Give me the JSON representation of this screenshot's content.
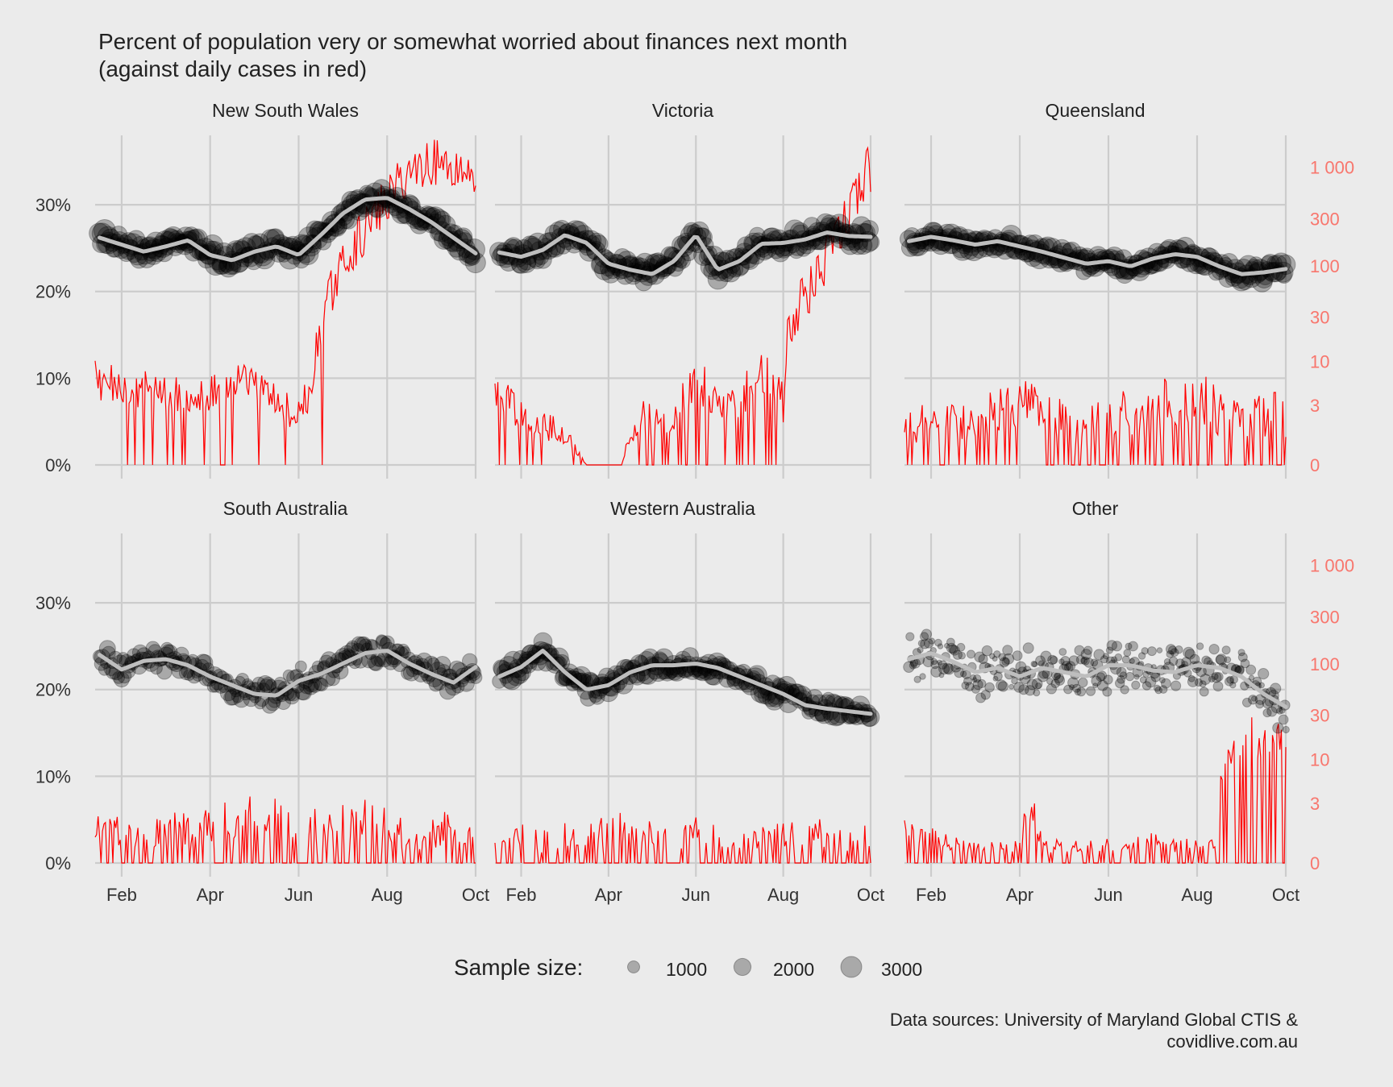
{
  "chart_data": {
    "type": "scatter",
    "title": "Percent of population very or somewhat worried about finances next month",
    "subtitle": "(against daily cases in red)",
    "caption_line1": "Data sources: University of Maryland Global CTIS &",
    "caption_line2": "covidlive.com.au",
    "x_ticks": [
      "Feb",
      "Apr",
      "Jun",
      "Aug",
      "Oct"
    ],
    "x_tick_months": [
      1,
      3,
      5,
      7,
      9
    ],
    "x_domain_months": [
      0.4,
      9.0
    ],
    "y_left_ticks": [
      "0%",
      "10%",
      "20%",
      "30%"
    ],
    "y_left_values": [
      0,
      10,
      20,
      30
    ],
    "y_left_range": [
      0,
      38
    ],
    "y_right_ticks": [
      "0",
      "3",
      "10",
      "30",
      "100",
      "300",
      "1 000"
    ],
    "y_right_values": [
      0,
      3,
      10,
      30,
      100,
      300,
      1000
    ],
    "y_right_scale": "log1p",
    "grid": true,
    "legend": {
      "title": "Sample size:",
      "position": "bottom",
      "entries": [
        "1000",
        "2000",
        "3000"
      ],
      "values": [
        1000,
        2000,
        3000
      ]
    },
    "colors": {
      "points": "#000000",
      "smooth": "#BEBEBE",
      "cases": "#FF0000",
      "right_axis_text": "#F8766D",
      "grid": "#CCCCCC",
      "panel_bg": "#EBEBEB"
    },
    "panels": [
      {
        "name": "New South Wales",
        "pct_key": [
          [
            0.5,
            26.2
          ],
          [
            1.0,
            25.4
          ],
          [
            1.5,
            24.6
          ],
          [
            2.0,
            25.2
          ],
          [
            2.5,
            25.9
          ],
          [
            3.0,
            24.2
          ],
          [
            3.5,
            23.6
          ],
          [
            4.0,
            24.6
          ],
          [
            4.5,
            25.2
          ],
          [
            5.0,
            24.2
          ],
          [
            5.5,
            26.5
          ],
          [
            6.0,
            29.0
          ],
          [
            6.5,
            30.6
          ],
          [
            7.0,
            30.8
          ],
          [
            7.5,
            29.5
          ],
          [
            8.0,
            28.0
          ],
          [
            8.5,
            26.2
          ],
          [
            9.0,
            24.4
          ]
        ],
        "pct_noise": 1.0,
        "size_range": [
          1500,
          3200
        ],
        "cases_key": [
          [
            0.4,
            6
          ],
          [
            2.0,
            4
          ],
          [
            3.0,
            4
          ],
          [
            3.6,
            6
          ],
          [
            4.3,
            4
          ],
          [
            4.9,
            2
          ],
          [
            5.3,
            4
          ],
          [
            5.6,
            30
          ],
          [
            6.0,
            100
          ],
          [
            6.5,
            220
          ],
          [
            7.0,
            450
          ],
          [
            7.5,
            900
          ],
          [
            8.0,
            1150
          ],
          [
            8.5,
            1000
          ],
          [
            9.0,
            850
          ]
        ],
        "cases_noise": 0.55,
        "zero_prob": 0.1
      },
      {
        "name": "Victoria",
        "pct_key": [
          [
            0.5,
            24.5
          ],
          [
            1.0,
            24.0
          ],
          [
            1.5,
            24.8
          ],
          [
            2.0,
            26.5
          ],
          [
            2.5,
            25.6
          ],
          [
            3.0,
            23.2
          ],
          [
            3.5,
            22.5
          ],
          [
            4.0,
            22.0
          ],
          [
            4.5,
            23.5
          ],
          [
            5.0,
            26.5
          ],
          [
            5.5,
            22.5
          ],
          [
            6.0,
            23.5
          ],
          [
            6.5,
            25.5
          ],
          [
            7.0,
            25.6
          ],
          [
            7.5,
            26.0
          ],
          [
            8.0,
            26.8
          ],
          [
            8.5,
            26.4
          ],
          [
            9.0,
            26.3
          ]
        ],
        "pct_noise": 1.1,
        "size_range": [
          1500,
          3000
        ],
        "cases_key": [
          [
            0.4,
            4
          ],
          [
            1.0,
            2
          ],
          [
            2.0,
            1
          ],
          [
            2.5,
            0
          ],
          [
            3.3,
            0
          ],
          [
            3.8,
            2
          ],
          [
            4.5,
            2
          ],
          [
            5.0,
            6
          ],
          [
            5.5,
            3
          ],
          [
            6.0,
            3
          ],
          [
            6.5,
            8
          ],
          [
            7.0,
            3
          ],
          [
            7.2,
            30
          ],
          [
            7.7,
            60
          ],
          [
            8.2,
            160
          ],
          [
            8.6,
            400
          ],
          [
            9.0,
            1000
          ]
        ],
        "cases_noise": 0.6,
        "zero_prob": 0.22
      },
      {
        "name": "Queensland",
        "pct_key": [
          [
            0.5,
            25.8
          ],
          [
            1.0,
            26.3
          ],
          [
            1.5,
            25.9
          ],
          [
            2.0,
            25.4
          ],
          [
            2.5,
            25.8
          ],
          [
            3.0,
            25.2
          ],
          [
            3.5,
            24.6
          ],
          [
            4.0,
            23.9
          ],
          [
            4.5,
            23.2
          ],
          [
            5.0,
            23.5
          ],
          [
            5.5,
            22.9
          ],
          [
            6.0,
            23.8
          ],
          [
            6.5,
            24.3
          ],
          [
            7.0,
            24.0
          ],
          [
            7.5,
            22.9
          ],
          [
            8.0,
            22.0
          ],
          [
            8.5,
            22.2
          ],
          [
            9.0,
            22.6
          ]
        ],
        "pct_noise": 0.9,
        "size_range": [
          1400,
          3000
        ],
        "cases_key": [
          [
            0.4,
            1
          ],
          [
            1.0,
            2
          ],
          [
            2.0,
            1.5
          ],
          [
            3.0,
            3
          ],
          [
            4.0,
            1.5
          ],
          [
            5.0,
            2
          ],
          [
            6.0,
            2.5
          ],
          [
            7.0,
            4
          ],
          [
            7.5,
            2
          ],
          [
            8.0,
            2
          ],
          [
            9.0,
            2
          ]
        ],
        "cases_noise": 0.8,
        "zero_prob": 0.32
      },
      {
        "name": "South Australia",
        "pct_key": [
          [
            0.5,
            24.0
          ],
          [
            1.0,
            22.3
          ],
          [
            1.5,
            23.3
          ],
          [
            2.0,
            23.5
          ],
          [
            2.5,
            22.8
          ],
          [
            3.0,
            21.5
          ],
          [
            3.5,
            20.5
          ],
          [
            4.0,
            19.5
          ],
          [
            4.5,
            19.3
          ],
          [
            5.0,
            21.0
          ],
          [
            5.5,
            21.8
          ],
          [
            6.0,
            23.0
          ],
          [
            6.5,
            24.2
          ],
          [
            7.0,
            24.5
          ],
          [
            7.5,
            23.0
          ],
          [
            8.0,
            21.8
          ],
          [
            8.5,
            20.8
          ],
          [
            9.0,
            22.6
          ]
        ],
        "pct_noise": 1.3,
        "size_range": [
          800,
          1800
        ],
        "cases_key": [
          [
            0.4,
            1
          ],
          [
            2.0,
            1
          ],
          [
            3.0,
            1.2
          ],
          [
            4.0,
            2
          ],
          [
            5.0,
            1.2
          ],
          [
            6.0,
            1.5
          ],
          [
            7.0,
            1.5
          ],
          [
            7.6,
            0.4
          ],
          [
            8.0,
            0.8
          ],
          [
            8.5,
            1.2
          ],
          [
            9.0,
            0.8
          ]
        ],
        "cases_noise": 0.8,
        "zero_prob": 0.45
      },
      {
        "name": "Western Australia",
        "pct_key": [
          [
            0.5,
            21.5
          ],
          [
            1.0,
            22.6
          ],
          [
            1.5,
            24.5
          ],
          [
            2.0,
            22.0
          ],
          [
            2.5,
            20.0
          ],
          [
            3.0,
            20.5
          ],
          [
            3.5,
            22.0
          ],
          [
            4.0,
            22.8
          ],
          [
            4.5,
            22.8
          ],
          [
            5.0,
            23.0
          ],
          [
            5.5,
            22.5
          ],
          [
            6.0,
            21.5
          ],
          [
            6.5,
            20.5
          ],
          [
            7.0,
            19.5
          ],
          [
            7.5,
            18.2
          ],
          [
            8.0,
            17.8
          ],
          [
            8.5,
            17.5
          ],
          [
            9.0,
            17.2
          ]
        ],
        "pct_noise": 1.0,
        "size_range": [
          1100,
          2600
        ],
        "cases_key": [
          [
            0.4,
            1
          ],
          [
            1.5,
            0.5
          ],
          [
            2.5,
            1
          ],
          [
            3.5,
            1.2
          ],
          [
            4.3,
            0.6
          ],
          [
            5.0,
            1
          ],
          [
            6.0,
            0.8
          ],
          [
            7.0,
            1
          ],
          [
            8.0,
            0.8
          ],
          [
            9.0,
            0.6
          ]
        ],
        "cases_noise": 0.8,
        "zero_prob": 0.55
      },
      {
        "name": "Other",
        "pct_key": [
          [
            0.5,
            23.5
          ],
          [
            1.0,
            24.2
          ],
          [
            1.5,
            23.2
          ],
          [
            2.0,
            22.0
          ],
          [
            2.5,
            22.5
          ],
          [
            3.0,
            21.5
          ],
          [
            3.5,
            22.5
          ],
          [
            4.0,
            22.0
          ],
          [
            4.5,
            21.5
          ],
          [
            5.0,
            22.8
          ],
          [
            5.5,
            22.8
          ],
          [
            6.0,
            22.2
          ],
          [
            6.5,
            22.0
          ],
          [
            7.0,
            22.8
          ],
          [
            7.5,
            22.5
          ],
          [
            8.0,
            21.5
          ],
          [
            8.5,
            19.5
          ],
          [
            9.0,
            18.0
          ]
        ],
        "pct_noise": 2.4,
        "size_range": [
          150,
          800
        ],
        "cases_key": [
          [
            0.4,
            1
          ],
          [
            2.0,
            0.4
          ],
          [
            3.0,
            0.4
          ],
          [
            3.2,
            3
          ],
          [
            3.5,
            0.4
          ],
          [
            5.0,
            0.5
          ],
          [
            6.0,
            0.6
          ],
          [
            7.0,
            0.4
          ],
          [
            7.4,
            0.5
          ],
          [
            7.6,
            12
          ],
          [
            8.0,
            15
          ],
          [
            8.5,
            18
          ],
          [
            9.0,
            20
          ]
        ],
        "cases_noise": 0.55,
        "zero_prob": 0.5
      }
    ]
  }
}
